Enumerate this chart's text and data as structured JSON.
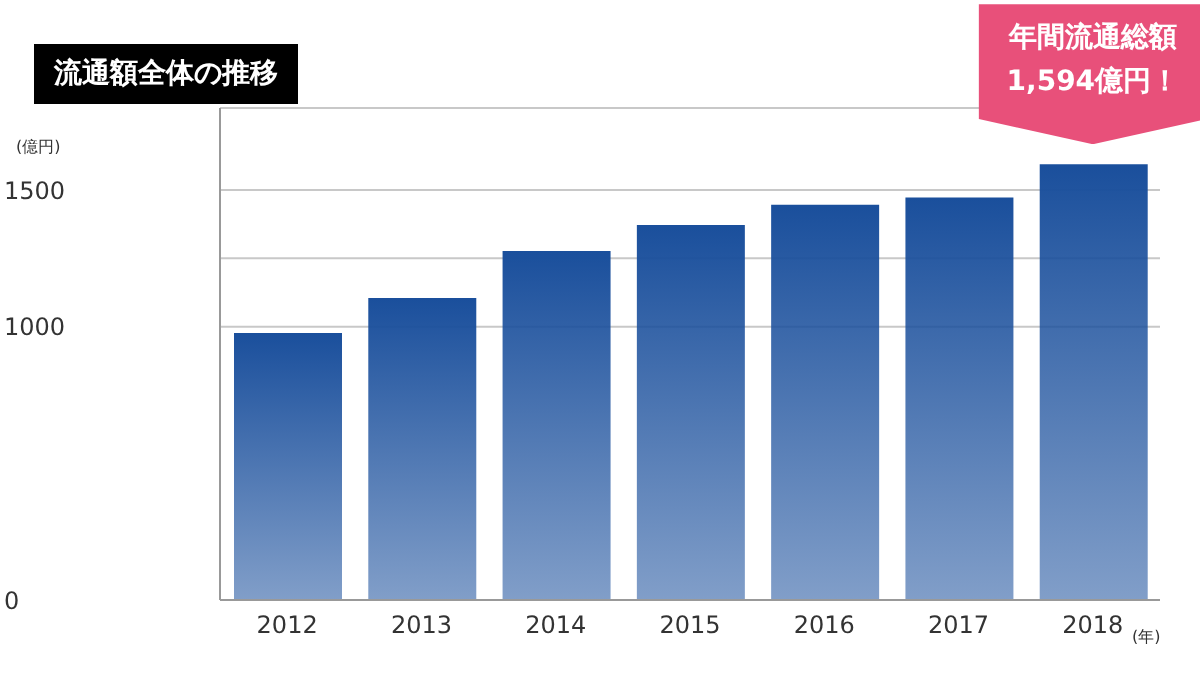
{
  "chart_data": {
    "type": "bar",
    "title": "流通額全体の推移",
    "ylabel": "(億円)",
    "xlabel": "(年)",
    "categories": [
      "2012",
      "2013",
      "2014",
      "2015",
      "2016",
      "2017",
      "2018"
    ],
    "series": [
      {
        "color": "#1a4f9c",
        "values": [
          977,
          1105,
          1277,
          1372,
          1446,
          1473,
          1594
        ]
      }
    ],
    "ylim": [
      0,
      1800
    ],
    "yticks": [
      0,
      1000,
      {
        "value": 1250,
        "label": null
      },
      1500
    ],
    "grid": "y",
    "legend": false,
    "annotations": [
      {
        "text": "年間流通総額\n1,594億円！",
        "x": "2018",
        "y": 1594
      }
    ]
  }
}
